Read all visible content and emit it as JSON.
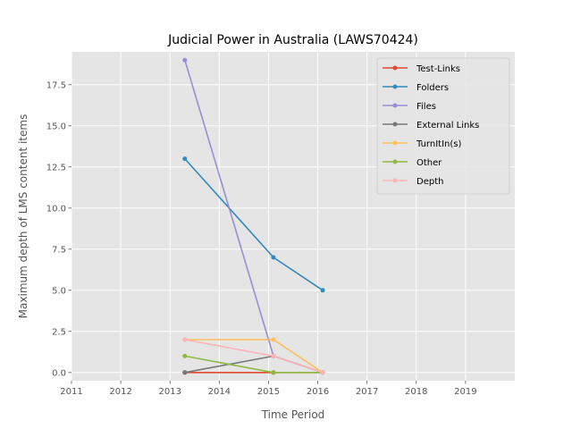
{
  "chart_data": {
    "type": "line",
    "title": "Judicial Power in Australia (LAWS70424)",
    "xlabel": "Time Period",
    "ylabel": "Maximum depth of LMS content items",
    "xlim": [
      2011,
      2020
    ],
    "ylim": [
      -0.5,
      19.5
    ],
    "x_ticks": [
      "2011",
      "2012",
      "2013",
      "2014",
      "2015",
      "2016",
      "2017",
      "2018",
      "2019"
    ],
    "y_ticks": [
      "0.0",
      "2.5",
      "5.0",
      "7.5",
      "10.0",
      "12.5",
      "15.0",
      "17.5"
    ],
    "grid": true,
    "legend_position": "upper right",
    "series": [
      {
        "name": "Test-Links",
        "color": "#E24A33",
        "x": [
          2013.3,
          2015.1,
          2016.1
        ],
        "y": [
          0,
          0,
          0
        ]
      },
      {
        "name": "Folders",
        "color": "#348ABD",
        "x": [
          2013.3,
          2015.1,
          2016.1
        ],
        "y": [
          13,
          7,
          5
        ]
      },
      {
        "name": "Files",
        "color": "#988ED5",
        "x": [
          2013.3,
          2015.1,
          2016.1
        ],
        "y": [
          19,
          1,
          0
        ]
      },
      {
        "name": "External Links",
        "color": "#777777",
        "x": [
          2013.3,
          2015.1,
          2016.1
        ],
        "y": [
          0,
          1,
          0
        ]
      },
      {
        "name": "TurnItIn(s)",
        "color": "#FBC15E",
        "x": [
          2013.3,
          2015.1,
          2016.1
        ],
        "y": [
          2,
          2,
          0
        ]
      },
      {
        "name": "Other",
        "color": "#8EBA42",
        "x": [
          2013.3,
          2015.1,
          2016.1
        ],
        "y": [
          1,
          0,
          0
        ]
      },
      {
        "name": "Depth",
        "color": "#FFB5B8",
        "x": [
          2013.3,
          2015.1,
          2016.1
        ],
        "y": [
          2,
          1,
          0
        ]
      }
    ]
  }
}
